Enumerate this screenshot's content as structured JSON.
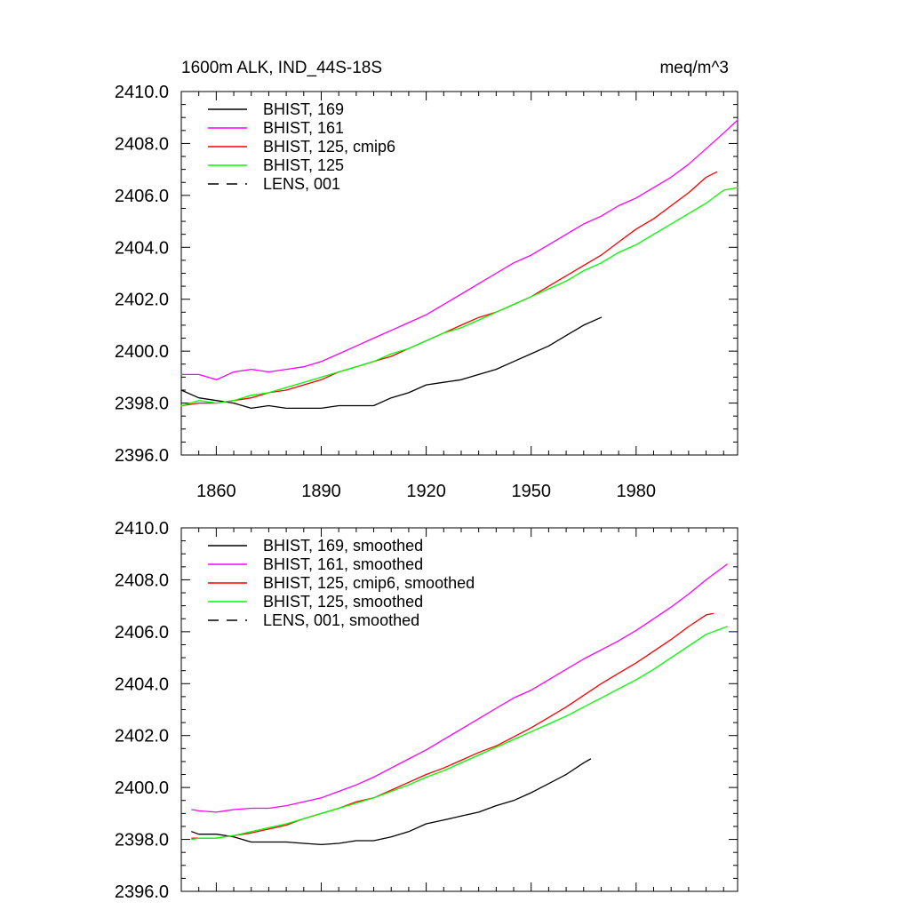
{
  "chart_data": [
    {
      "type": "line",
      "title": "1600m ALK, IND_44S-18S",
      "units": "meq/m^3",
      "xlim": [
        1850,
        2009
      ],
      "ylim": [
        2396,
        2410
      ],
      "xticks": [
        1860,
        1890,
        1920,
        1950,
        1980
      ],
      "xtick_labels": [
        "1860",
        "1890",
        "1920",
        "1950",
        "1980"
      ],
      "yticks": [
        2396,
        2398,
        2400,
        2402,
        2404,
        2406,
        2408,
        2410
      ],
      "ytick_labels": [
        "2396.0",
        "2398.0",
        "2400.0",
        "2402.0",
        "2404.0",
        "2406.0",
        "2408.0",
        "2410.0"
      ],
      "grid": false,
      "legend_position": "top-left",
      "series": [
        {
          "name": "BHIST, 169",
          "color": "#000000",
          "dash": "solid",
          "x": [
            1850,
            1855,
            1860,
            1865,
            1870,
            1875,
            1880,
            1885,
            1890,
            1895,
            1900,
            1905,
            1910,
            1915,
            1920,
            1925,
            1930,
            1935,
            1940,
            1945,
            1950,
            1955,
            1960,
            1965,
            1970
          ],
          "y": [
            2398.5,
            2398.2,
            2398.1,
            2398.0,
            2397.8,
            2397.9,
            2397.8,
            2397.8,
            2397.8,
            2397.9,
            2397.9,
            2397.9,
            2398.2,
            2398.4,
            2398.7,
            2398.8,
            2398.9,
            2399.1,
            2399.3,
            2399.6,
            2399.9,
            2400.2,
            2400.6,
            2401.0,
            2401.3
          ]
        },
        {
          "name": "BHIST, 161",
          "color": "#ff00ff",
          "dash": "solid",
          "x": [
            1850,
            1855,
            1860,
            1865,
            1870,
            1875,
            1880,
            1885,
            1890,
            1895,
            1900,
            1905,
            1910,
            1915,
            1920,
            1925,
            1930,
            1935,
            1940,
            1945,
            1950,
            1955,
            1960,
            1965,
            1970,
            1975,
            1980,
            1985,
            1990,
            1995,
            2000,
            2005,
            2009
          ],
          "y": [
            2399.1,
            2399.1,
            2398.9,
            2399.2,
            2399.3,
            2399.2,
            2399.3,
            2399.4,
            2399.6,
            2399.9,
            2400.2,
            2400.5,
            2400.8,
            2401.1,
            2401.4,
            2401.8,
            2402.2,
            2402.6,
            2403.0,
            2403.4,
            2403.7,
            2404.1,
            2404.5,
            2404.9,
            2405.2,
            2405.6,
            2405.9,
            2406.3,
            2406.7,
            2407.2,
            2407.8,
            2408.4,
            2408.9
          ]
        },
        {
          "name": "BHIST, 125, cmip6",
          "color": "#ff0000",
          "dash": "solid",
          "x": [
            1850,
            1855,
            1860,
            1865,
            1870,
            1875,
            1880,
            1885,
            1890,
            1895,
            1900,
            1905,
            1910,
            1915,
            1920,
            1925,
            1930,
            1935,
            1940,
            1945,
            1950,
            1955,
            1960,
            1965,
            1970,
            1975,
            1980,
            1985,
            1990,
            1995,
            2000,
            2003
          ],
          "y": [
            2397.9,
            2398.0,
            2398.0,
            2398.1,
            2398.2,
            2398.4,
            2398.5,
            2398.7,
            2398.9,
            2399.2,
            2399.4,
            2399.6,
            2399.8,
            2400.1,
            2400.4,
            2400.7,
            2401.0,
            2401.3,
            2401.5,
            2401.8,
            2402.1,
            2402.5,
            2402.9,
            2403.3,
            2403.7,
            2404.2,
            2404.7,
            2405.1,
            2405.6,
            2406.1,
            2406.7,
            2406.9
          ]
        },
        {
          "name": "BHIST, 125",
          "color": "#00ff00",
          "dash": "solid",
          "x": [
            1850,
            1855,
            1860,
            1865,
            1870,
            1875,
            1880,
            1885,
            1890,
            1895,
            1900,
            1905,
            1910,
            1915,
            1920,
            1925,
            1930,
            1935,
            1940,
            1945,
            1950,
            1955,
            1960,
            1965,
            1970,
            1975,
            1980,
            1985,
            1990,
            1995,
            2000,
            2005,
            2009
          ],
          "y": [
            2397.9,
            2398.1,
            2398.0,
            2398.1,
            2398.3,
            2398.4,
            2398.6,
            2398.8,
            2399.0,
            2399.2,
            2399.4,
            2399.6,
            2399.9,
            2400.1,
            2400.4,
            2400.7,
            2400.9,
            2401.2,
            2401.5,
            2401.8,
            2402.1,
            2402.4,
            2402.7,
            2403.1,
            2403.4,
            2403.8,
            2404.1,
            2404.5,
            2404.9,
            2405.3,
            2405.7,
            2406.2,
            2406.3
          ]
        },
        {
          "name": "LENS, 001",
          "color": "#000000",
          "dash": "dashed",
          "x": [],
          "y": []
        }
      ]
    },
    {
      "type": "line",
      "title": "",
      "xlim": [
        1850,
        2009
      ],
      "ylim": [
        2396,
        2410
      ],
      "xticks": [
        1860,
        1890,
        1920,
        1950,
        1980
      ],
      "xtick_labels": [],
      "yticks": [
        2396,
        2398,
        2400,
        2402,
        2404,
        2406,
        2408,
        2410
      ],
      "ytick_labels": [
        "2396.0",
        "2398.0",
        "2400.0",
        "2402.0",
        "2404.0",
        "2406.0",
        "2408.0",
        "2410.0"
      ],
      "grid": false,
      "legend_position": "top-left",
      "series": [
        {
          "name": "BHIST, 169, smoothed",
          "color": "#000000",
          "dash": "solid",
          "x": [
            1853,
            1855,
            1860,
            1865,
            1870,
            1875,
            1880,
            1885,
            1890,
            1895,
            1900,
            1905,
            1910,
            1915,
            1920,
            1925,
            1930,
            1935,
            1940,
            1945,
            1950,
            1955,
            1960,
            1965,
            1967
          ],
          "y": [
            2398.3,
            2398.2,
            2398.2,
            2398.1,
            2397.9,
            2397.9,
            2397.9,
            2397.85,
            2397.8,
            2397.85,
            2397.95,
            2397.95,
            2398.1,
            2398.3,
            2398.6,
            2398.75,
            2398.9,
            2399.05,
            2399.3,
            2399.5,
            2399.8,
            2400.15,
            2400.5,
            2400.95,
            2401.1
          ]
        },
        {
          "name": "BHIST, 161, smoothed",
          "color": "#ff00ff",
          "dash": "solid",
          "x": [
            1853,
            1855,
            1860,
            1865,
            1870,
            1875,
            1880,
            1885,
            1890,
            1895,
            1900,
            1905,
            1910,
            1915,
            1920,
            1925,
            1930,
            1935,
            1940,
            1945,
            1950,
            1955,
            1960,
            1965,
            1970,
            1975,
            1980,
            1985,
            1990,
            1995,
            2000,
            2006
          ],
          "y": [
            2399.15,
            2399.1,
            2399.05,
            2399.15,
            2399.2,
            2399.2,
            2399.3,
            2399.45,
            2399.6,
            2399.85,
            2400.1,
            2400.4,
            2400.75,
            2401.1,
            2401.45,
            2401.85,
            2402.25,
            2402.65,
            2403.05,
            2403.45,
            2403.75,
            2404.15,
            2404.55,
            2404.95,
            2405.3,
            2405.65,
            2406.05,
            2406.5,
            2406.95,
            2407.45,
            2408.0,
            2408.6
          ]
        },
        {
          "name": "BHIST, 125, cmip6, smoothed",
          "color": "#ff0000",
          "dash": "solid",
          "x": [
            1853,
            1855,
            1860,
            1865,
            1870,
            1875,
            1880,
            1885,
            1890,
            1895,
            1900,
            1905,
            1910,
            1915,
            1920,
            1925,
            1930,
            1935,
            1940,
            1945,
            1950,
            1955,
            1960,
            1965,
            1970,
            1975,
            1980,
            1985,
            1990,
            1995,
            2000,
            2002
          ],
          "y": [
            2398.05,
            2398.05,
            2398.05,
            2398.15,
            2398.25,
            2398.4,
            2398.55,
            2398.8,
            2399.0,
            2399.2,
            2399.45,
            2399.6,
            2399.9,
            2400.2,
            2400.5,
            2400.75,
            2401.05,
            2401.35,
            2401.6,
            2401.95,
            2402.3,
            2402.7,
            2403.1,
            2403.55,
            2404.0,
            2404.4,
            2404.8,
            2405.25,
            2405.7,
            2406.2,
            2406.65,
            2406.7
          ]
        },
        {
          "name": "BHIST, 125, smoothed",
          "color": "#00ff00",
          "dash": "solid",
          "x": [
            1853,
            1855,
            1860,
            1865,
            1870,
            1875,
            1880,
            1885,
            1890,
            1895,
            1900,
            1905,
            1910,
            1915,
            1920,
            1925,
            1930,
            1935,
            1940,
            1945,
            1950,
            1955,
            1960,
            1965,
            1970,
            1975,
            1980,
            1985,
            1990,
            1995,
            2000,
            2006
          ],
          "y": [
            2398.0,
            2398.05,
            2398.05,
            2398.15,
            2398.3,
            2398.45,
            2398.6,
            2398.8,
            2399.0,
            2399.2,
            2399.4,
            2399.6,
            2399.85,
            2400.1,
            2400.4,
            2400.65,
            2400.95,
            2401.25,
            2401.55,
            2401.85,
            2402.15,
            2402.45,
            2402.75,
            2403.1,
            2403.45,
            2403.8,
            2404.15,
            2404.55,
            2405.0,
            2405.45,
            2405.9,
            2406.2
          ]
        },
        {
          "name": "LENS, 001, smoothed",
          "color": "#000000",
          "dash": "dashed",
          "x": [],
          "y": []
        }
      ]
    }
  ]
}
